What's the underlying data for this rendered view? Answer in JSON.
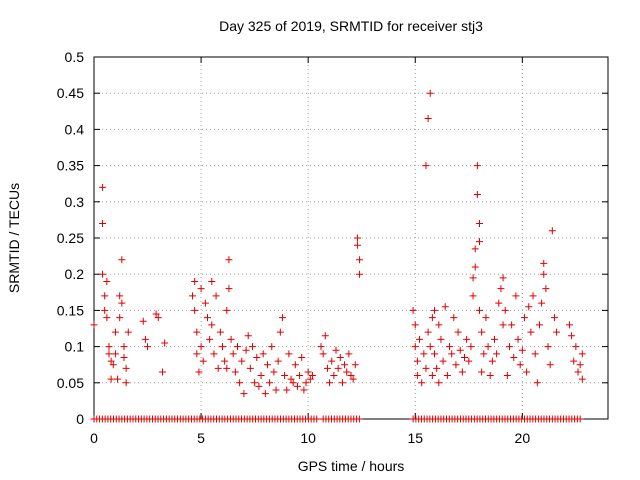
{
  "chart_data": {
    "type": "scatter",
    "title": "Day 325 of 2019, SRMTID for receiver stj3",
    "xlabel": "GPS time / hours",
    "ylabel": "SRMTID / TECUs",
    "xlim": [
      0,
      24
    ],
    "ylim": [
      0,
      0.5
    ],
    "xticks": [
      0,
      5,
      10,
      15,
      20
    ],
    "yticks": [
      0,
      0.05,
      0.1,
      0.15,
      0.2,
      0.25,
      0.3,
      0.35,
      0.4,
      0.45,
      0.5
    ],
    "grid": true,
    "marker": "plus",
    "color": "#e00000",
    "series": [
      {
        "name": "SRMTID",
        "points": [
          [
            0.0,
            0.13
          ],
          [
            0.4,
            0.32
          ],
          [
            0.4,
            0.27
          ],
          [
            0.4,
            0.2
          ],
          [
            0.5,
            0.17
          ],
          [
            0.5,
            0.15
          ],
          [
            0.6,
            0.19
          ],
          [
            0.6,
            0.14
          ],
          [
            0.7,
            0.1
          ],
          [
            0.7,
            0.09
          ],
          [
            0.8,
            0.08
          ],
          [
            0.8,
            0.055
          ],
          [
            0.9,
            0.075
          ],
          [
            1.0,
            0.12
          ],
          [
            1.0,
            0.09
          ],
          [
            1.1,
            0.055
          ],
          [
            1.2,
            0.17
          ],
          [
            1.2,
            0.14
          ],
          [
            1.3,
            0.22
          ],
          [
            1.3,
            0.16
          ],
          [
            1.4,
            0.1
          ],
          [
            1.4,
            0.085
          ],
          [
            1.5,
            0.07
          ],
          [
            1.5,
            0.05
          ],
          [
            1.6,
            0.12
          ],
          [
            2.3,
            0.135
          ],
          [
            2.4,
            0.11
          ],
          [
            2.5,
            0.1
          ],
          [
            2.9,
            0.145
          ],
          [
            3.0,
            0.14
          ],
          [
            3.2,
            0.065
          ],
          [
            3.3,
            0.105
          ],
          [
            4.6,
            0.17
          ],
          [
            4.7,
            0.19
          ],
          [
            4.7,
            0.15
          ],
          [
            4.8,
            0.12
          ],
          [
            4.8,
            0.09
          ],
          [
            4.9,
            0.065
          ],
          [
            5.0,
            0.18
          ],
          [
            5.0,
            0.1
          ],
          [
            5.1,
            0.08
          ],
          [
            5.2,
            0.16
          ],
          [
            5.3,
            0.14
          ],
          [
            5.4,
            0.11
          ],
          [
            5.5,
            0.19
          ],
          [
            5.5,
            0.13
          ],
          [
            5.6,
            0.09
          ],
          [
            5.7,
            0.17
          ],
          [
            5.8,
            0.07
          ],
          [
            5.9,
            0.12
          ],
          [
            6.0,
            0.1
          ],
          [
            6.1,
            0.08
          ],
          [
            6.2,
            0.15
          ],
          [
            6.2,
            0.07
          ],
          [
            6.3,
            0.22
          ],
          [
            6.3,
            0.18
          ],
          [
            6.4,
            0.11
          ],
          [
            6.5,
            0.09
          ],
          [
            6.6,
            0.065
          ],
          [
            6.7,
            0.1
          ],
          [
            6.8,
            0.05
          ],
          [
            6.9,
            0.08
          ],
          [
            7.0,
            0.035
          ],
          [
            7.1,
            0.095
          ],
          [
            7.2,
            0.115
          ],
          [
            7.3,
            0.07
          ],
          [
            7.4,
            0.1
          ],
          [
            7.5,
            0.05
          ],
          [
            7.6,
            0.085
          ],
          [
            7.7,
            0.045
          ],
          [
            7.8,
            0.06
          ],
          [
            7.9,
            0.09
          ],
          [
            8.0,
            0.035
          ],
          [
            8.1,
            0.075
          ],
          [
            8.2,
            0.05
          ],
          [
            8.3,
            0.1
          ],
          [
            8.4,
            0.065
          ],
          [
            8.5,
            0.04
          ],
          [
            8.6,
            0.08
          ],
          [
            8.7,
            0.12
          ],
          [
            8.8,
            0.14
          ],
          [
            8.9,
            0.06
          ],
          [
            9.0,
            0.04
          ],
          [
            9.1,
            0.09
          ],
          [
            9.2,
            0.055
          ],
          [
            9.3,
            0.05
          ],
          [
            9.4,
            0.075
          ],
          [
            9.5,
            0.045
          ],
          [
            9.6,
            0.06
          ],
          [
            9.7,
            0.085
          ],
          [
            9.8,
            0.04
          ],
          [
            9.9,
            0.05
          ],
          [
            10.0,
            0.065
          ],
          [
            10.1,
            0.055
          ],
          [
            10.2,
            0.06
          ],
          [
            10.6,
            0.1
          ],
          [
            10.7,
            0.09
          ],
          [
            10.8,
            0.115
          ],
          [
            10.9,
            0.07
          ],
          [
            11.0,
            0.05
          ],
          [
            11.1,
            0.08
          ],
          [
            11.2,
            0.06
          ],
          [
            11.3,
            0.095
          ],
          [
            11.4,
            0.07
          ],
          [
            11.5,
            0.085
          ],
          [
            11.6,
            0.05
          ],
          [
            11.7,
            0.075
          ],
          [
            11.8,
            0.065
          ],
          [
            11.9,
            0.09
          ],
          [
            12.0,
            0.06
          ],
          [
            12.1,
            0.055
          ],
          [
            12.2,
            0.075
          ],
          [
            12.3,
            0.25
          ],
          [
            12.3,
            0.24
          ],
          [
            12.4,
            0.22
          ],
          [
            12.4,
            0.2
          ],
          [
            14.9,
            0.15
          ],
          [
            15.0,
            0.13
          ],
          [
            15.0,
            0.1
          ],
          [
            15.1,
            0.08
          ],
          [
            15.1,
            0.06
          ],
          [
            15.2,
            0.11
          ],
          [
            15.3,
            0.05
          ],
          [
            15.4,
            0.09
          ],
          [
            15.5,
            0.35
          ],
          [
            15.5,
            0.07
          ],
          [
            15.6,
            0.415
          ],
          [
            15.6,
            0.12
          ],
          [
            15.7,
            0.45
          ],
          [
            15.7,
            0.1
          ],
          [
            15.8,
            0.14
          ],
          [
            15.8,
            0.06
          ],
          [
            15.9,
            0.15
          ],
          [
            15.9,
            0.09
          ],
          [
            16.0,
            0.07
          ],
          [
            16.1,
            0.13
          ],
          [
            16.1,
            0.05
          ],
          [
            16.2,
            0.11
          ],
          [
            16.3,
            0.08
          ],
          [
            16.4,
            0.155
          ],
          [
            16.5,
            0.06
          ],
          [
            16.6,
            0.1
          ],
          [
            16.7,
            0.09
          ],
          [
            16.8,
            0.14
          ],
          [
            16.9,
            0.075
          ],
          [
            17.0,
            0.12
          ],
          [
            17.1,
            0.095
          ],
          [
            17.2,
            0.065
          ],
          [
            17.3,
            0.085
          ],
          [
            17.4,
            0.11
          ],
          [
            17.5,
            0.08
          ],
          [
            17.6,
            0.1
          ],
          [
            17.7,
            0.195
          ],
          [
            17.7,
            0.17
          ],
          [
            17.8,
            0.235
          ],
          [
            17.8,
            0.21
          ],
          [
            17.9,
            0.35
          ],
          [
            17.9,
            0.31
          ],
          [
            18.0,
            0.27
          ],
          [
            18.0,
            0.245
          ],
          [
            18.0,
            0.15
          ],
          [
            18.1,
            0.12
          ],
          [
            18.1,
            0.065
          ],
          [
            18.2,
            0.09
          ],
          [
            18.3,
            0.14
          ],
          [
            18.4,
            0.1
          ],
          [
            18.5,
            0.06
          ],
          [
            18.6,
            0.08
          ],
          [
            18.7,
            0.11
          ],
          [
            18.8,
            0.09
          ],
          [
            18.9,
            0.16
          ],
          [
            19.0,
            0.18
          ],
          [
            19.1,
            0.195
          ],
          [
            19.1,
            0.13
          ],
          [
            19.2,
            0.15
          ],
          [
            19.3,
            0.06
          ],
          [
            19.4,
            0.1
          ],
          [
            19.5,
            0.13
          ],
          [
            19.6,
            0.085
          ],
          [
            19.7,
            0.17
          ],
          [
            19.8,
            0.11
          ],
          [
            19.9,
            0.075
          ],
          [
            20.0,
            0.095
          ],
          [
            20.1,
            0.14
          ],
          [
            20.2,
            0.065
          ],
          [
            20.3,
            0.155
          ],
          [
            20.4,
            0.12
          ],
          [
            20.5,
            0.17
          ],
          [
            20.6,
            0.09
          ],
          [
            20.7,
            0.05
          ],
          [
            20.8,
            0.13
          ],
          [
            20.9,
            0.16
          ],
          [
            21.0,
            0.215
          ],
          [
            21.0,
            0.2
          ],
          [
            21.1,
            0.18
          ],
          [
            21.2,
            0.1
          ],
          [
            21.3,
            0.075
          ],
          [
            21.4,
            0.26
          ],
          [
            21.5,
            0.14
          ],
          [
            21.6,
            0.12
          ],
          [
            22.2,
            0.13
          ],
          [
            22.3,
            0.115
          ],
          [
            22.4,
            0.08
          ],
          [
            22.5,
            0.1
          ],
          [
            22.6,
            0.065
          ],
          [
            22.7,
            0.075
          ],
          [
            22.8,
            0.055
          ],
          [
            22.8,
            0.09
          ]
        ]
      }
    ],
    "zero_band": [
      [
        0.0,
        10.4
      ],
      [
        10.7,
        12.5
      ],
      [
        14.9,
        22.8
      ]
    ]
  }
}
